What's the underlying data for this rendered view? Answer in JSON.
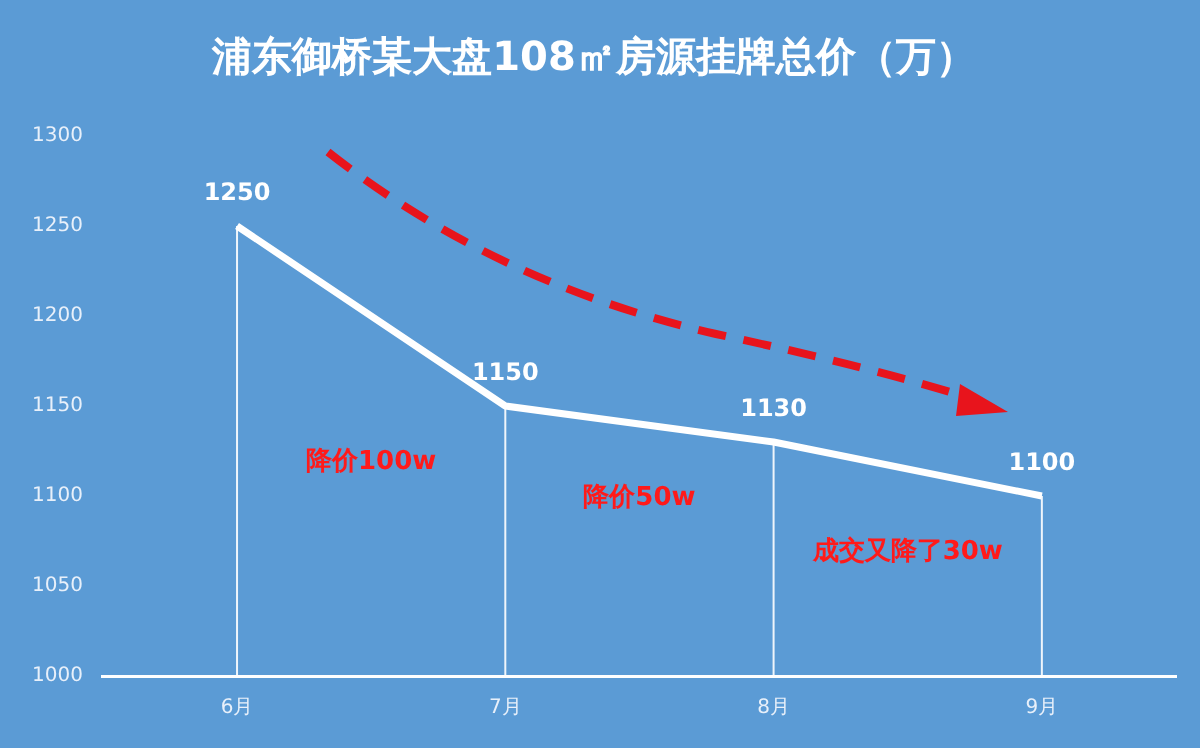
{
  "chart_data": {
    "type": "line",
    "title": "浦东御桥某大盘108㎡房源挂牌总价（万）",
    "categories": [
      "6月",
      "7月",
      "8月",
      "9月"
    ],
    "series": [
      {
        "color": "#ffffff",
        "values": [
          1250,
          1150,
          1130,
          1100
        ]
      }
    ],
    "ylim": [
      1000,
      1300
    ],
    "yticks": [
      1000,
      1050,
      1100,
      1150,
      1200,
      1250,
      1300
    ],
    "grid": "x",
    "legend": false,
    "marker": "none",
    "data_labels": true,
    "annotations": [
      "降价100w",
      "降价50w",
      "成交又降了30w"
    ]
  }
}
